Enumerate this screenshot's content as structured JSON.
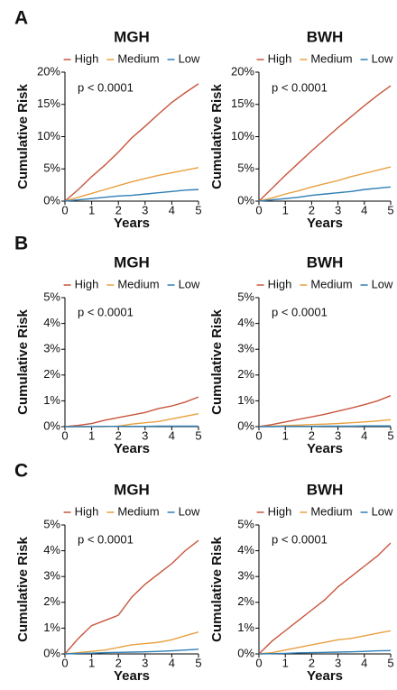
{
  "panel_labels": [
    "A",
    "B",
    "C"
  ],
  "chart_data": [
    {
      "type": "line",
      "title": "MGH",
      "xlabel": "Years",
      "ylabel": "Cumulative Risk",
      "annotation": "p < 0.0001",
      "x": [
        0,
        0.5,
        1,
        1.5,
        2,
        2.5,
        3,
        3.5,
        4,
        4.5,
        5
      ],
      "xlim": [
        0,
        5
      ],
      "xticks": [
        0,
        1,
        2,
        3,
        4,
        5
      ],
      "ylim": [
        0,
        20
      ],
      "yticks": [
        {
          "value": 0,
          "label": "0%"
        },
        {
          "value": 5,
          "label": "5%"
        },
        {
          "value": 10,
          "label": "10%"
        },
        {
          "value": 15,
          "label": "15%"
        },
        {
          "value": 20,
          "label": "20%"
        }
      ],
      "series": [
        {
          "name": "High",
          "color": "#c8553d",
          "values": [
            0,
            1.8,
            3.8,
            5.6,
            7.6,
            9.8,
            11.6,
            13.5,
            15.3,
            16.8,
            18.2
          ]
        },
        {
          "name": "Medium",
          "color": "#e8a040",
          "values": [
            0,
            0.6,
            1.2,
            1.8,
            2.4,
            3,
            3.5,
            4,
            4.4,
            4.8,
            5.2
          ]
        },
        {
          "name": "Low",
          "color": "#2f7fb5",
          "values": [
            0,
            0.2,
            0.4,
            0.6,
            0.8,
            0.9,
            1.1,
            1.3,
            1.5,
            1.7,
            1.8
          ]
        }
      ]
    },
    {
      "type": "line",
      "title": "BWH",
      "xlabel": "Years",
      "ylabel": "Cumulative Risk",
      "annotation": "p < 0.0001",
      "x": [
        0,
        0.5,
        1,
        1.5,
        2,
        2.5,
        3,
        3.5,
        4,
        4.5,
        5
      ],
      "xlim": [
        0,
        5
      ],
      "xticks": [
        0,
        1,
        2,
        3,
        4,
        5
      ],
      "ylim": [
        0,
        20
      ],
      "yticks": [
        {
          "value": 0,
          "label": "0%"
        },
        {
          "value": 5,
          "label": "5%"
        },
        {
          "value": 10,
          "label": "10%"
        },
        {
          "value": 15,
          "label": "15%"
        },
        {
          "value": 20,
          "label": "20%"
        }
      ],
      "series": [
        {
          "name": "High",
          "color": "#c8553d",
          "values": [
            0,
            2,
            4,
            5.9,
            7.8,
            9.6,
            11.4,
            13.1,
            14.8,
            16.4,
            17.9
          ]
        },
        {
          "name": "Medium",
          "color": "#e8a040",
          "values": [
            0,
            0.5,
            1.1,
            1.6,
            2.2,
            2.7,
            3.2,
            3.8,
            4.3,
            4.8,
            5.3
          ]
        },
        {
          "name": "Low",
          "color": "#2f7fb5",
          "values": [
            0,
            0.2,
            0.4,
            0.6,
            0.9,
            1.1,
            1.3,
            1.5,
            1.8,
            2,
            2.2
          ]
        }
      ]
    },
    {
      "type": "line",
      "title": "MGH",
      "xlabel": "Years",
      "ylabel": "Cumulative Risk",
      "annotation": "p < 0.0001",
      "x": [
        0,
        0.5,
        1,
        1.5,
        2,
        2.5,
        3,
        3.5,
        4,
        4.5,
        5
      ],
      "xlim": [
        0,
        5
      ],
      "xticks": [
        0,
        1,
        2,
        3,
        4,
        5
      ],
      "ylim": [
        0,
        5
      ],
      "yticks": [
        {
          "value": 0,
          "label": "0%"
        },
        {
          "value": 1,
          "label": "1%"
        },
        {
          "value": 2,
          "label": "2%"
        },
        {
          "value": 3,
          "label": "3%"
        },
        {
          "value": 4,
          "label": "4%"
        },
        {
          "value": 5,
          "label": "5%"
        }
      ],
      "series": [
        {
          "name": "High",
          "color": "#c8553d",
          "values": [
            0,
            0.05,
            0.12,
            0.25,
            0.35,
            0.45,
            0.55,
            0.7,
            0.8,
            0.95,
            1.15
          ]
        },
        {
          "name": "Medium",
          "color": "#e8a040",
          "values": [
            0,
            0,
            0,
            0,
            0.02,
            0.1,
            0.15,
            0.2,
            0.3,
            0.4,
            0.5
          ]
        },
        {
          "name": "Low",
          "color": "#2f7fb5",
          "values": [
            0,
            0,
            0,
            0.01,
            0.01,
            0.01,
            0.01,
            0.02,
            0.02,
            0.02,
            0.02
          ]
        }
      ]
    },
    {
      "type": "line",
      "title": "BWH",
      "xlabel": "Years",
      "ylabel": "Cumulative Risk",
      "annotation": "p < 0.0001",
      "x": [
        0,
        0.5,
        1,
        1.5,
        2,
        2.5,
        3,
        3.5,
        4,
        4.5,
        5
      ],
      "xlim": [
        0,
        5
      ],
      "xticks": [
        0,
        1,
        2,
        3,
        4,
        5
      ],
      "ylim": [
        0,
        5
      ],
      "yticks": [
        {
          "value": 0,
          "label": "0%"
        },
        {
          "value": 1,
          "label": "1%"
        },
        {
          "value": 2,
          "label": "2%"
        },
        {
          "value": 3,
          "label": "3%"
        },
        {
          "value": 4,
          "label": "4%"
        },
        {
          "value": 5,
          "label": "5%"
        }
      ],
      "series": [
        {
          "name": "High",
          "color": "#c8553d",
          "values": [
            0,
            0.08,
            0.18,
            0.28,
            0.38,
            0.48,
            0.6,
            0.72,
            0.85,
            1,
            1.2
          ]
        },
        {
          "name": "Medium",
          "color": "#e8a040",
          "values": [
            0,
            0.02,
            0.04,
            0.06,
            0.08,
            0.1,
            0.12,
            0.15,
            0.18,
            0.22,
            0.27
          ]
        },
        {
          "name": "Low",
          "color": "#2f7fb5",
          "values": [
            0,
            0,
            0.01,
            0.01,
            0.01,
            0.02,
            0.02,
            0.02,
            0.03,
            0.03,
            0.03
          ]
        }
      ]
    },
    {
      "type": "line",
      "title": "MGH",
      "xlabel": "Years",
      "ylabel": "Cumulative Risk",
      "annotation": "p < 0.0001",
      "x": [
        0,
        0.5,
        1,
        1.5,
        2,
        2.5,
        3,
        3.5,
        4,
        4.5,
        5
      ],
      "xlim": [
        0,
        5
      ],
      "xticks": [
        0,
        1,
        2,
        3,
        4,
        5
      ],
      "ylim": [
        0,
        5
      ],
      "yticks": [
        {
          "value": 0,
          "label": "0%"
        },
        {
          "value": 1,
          "label": "1%"
        },
        {
          "value": 2,
          "label": "2%"
        },
        {
          "value": 3,
          "label": "3%"
        },
        {
          "value": 4,
          "label": "4%"
        },
        {
          "value": 5,
          "label": "5%"
        }
      ],
      "series": [
        {
          "name": "High",
          "color": "#c8553d",
          "values": [
            0,
            0.6,
            1.1,
            1.3,
            1.5,
            2.2,
            2.7,
            3.1,
            3.5,
            4,
            4.4
          ]
        },
        {
          "name": "Medium",
          "color": "#e8a040",
          "values": [
            0,
            0.05,
            0.1,
            0.15,
            0.25,
            0.35,
            0.4,
            0.45,
            0.55,
            0.7,
            0.85
          ]
        },
        {
          "name": "Low",
          "color": "#2f7fb5",
          "values": [
            0,
            0.02,
            0.03,
            0.05,
            0.06,
            0.07,
            0.08,
            0.1,
            0.12,
            0.15,
            0.18
          ]
        }
      ]
    },
    {
      "type": "line",
      "title": "BWH",
      "xlabel": "Years",
      "ylabel": "Cumulative Risk",
      "annotation": "p < 0.0001",
      "x": [
        0,
        0.5,
        1,
        1.5,
        2,
        2.5,
        3,
        3.5,
        4,
        4.5,
        5
      ],
      "xlim": [
        0,
        5
      ],
      "xticks": [
        0,
        1,
        2,
        3,
        4,
        5
      ],
      "ylim": [
        0,
        5
      ],
      "yticks": [
        {
          "value": 0,
          "label": "0%"
        },
        {
          "value": 1,
          "label": "1%"
        },
        {
          "value": 2,
          "label": "2%"
        },
        {
          "value": 3,
          "label": "3%"
        },
        {
          "value": 4,
          "label": "4%"
        },
        {
          "value": 5,
          "label": "5%"
        }
      ],
      "series": [
        {
          "name": "High",
          "color": "#c8553d",
          "values": [
            0,
            0.5,
            0.9,
            1.3,
            1.7,
            2.1,
            2.6,
            3,
            3.4,
            3.8,
            4.3
          ]
        },
        {
          "name": "Medium",
          "color": "#e8a040",
          "values": [
            0,
            0.05,
            0.15,
            0.25,
            0.35,
            0.45,
            0.55,
            0.6,
            0.7,
            0.8,
            0.9
          ]
        },
        {
          "name": "Low",
          "color": "#2f7fb5",
          "values": [
            0,
            0.01,
            0.02,
            0.04,
            0.05,
            0.06,
            0.07,
            0.08,
            0.1,
            0.12,
            0.13
          ]
        }
      ]
    }
  ]
}
